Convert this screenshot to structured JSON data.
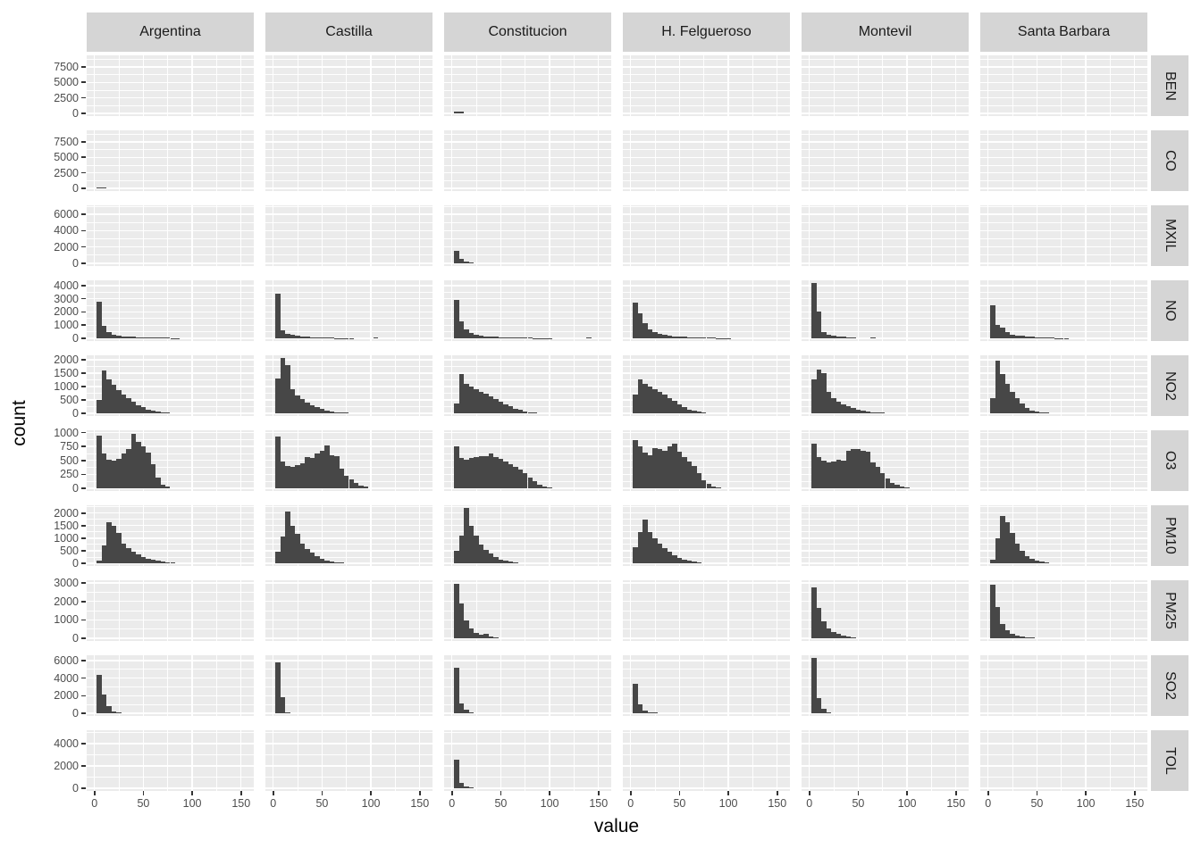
{
  "colors": {
    "bar": "#474747",
    "panel_bg": "#EBEBEB",
    "strip_bg": "#D5D5D5",
    "grid": "#FFFFFF",
    "tick": "#333333",
    "tick_text": "#4D4D4D",
    "strip_text": "#1A1A1A"
  },
  "chart_data": {
    "type": "bar",
    "subtype": "faceted-histogram-grid",
    "title": "",
    "xlabel": "value",
    "ylabel": "count",
    "legend": "none",
    "grid": "on",
    "x_ticks": [
      0,
      50,
      100,
      150
    ],
    "x_minor_ticks": [
      25,
      75,
      125
    ],
    "x_domain": [
      -8,
      163
    ],
    "bin_start": 2.5,
    "bin_width": 5,
    "facet_columns": [
      "Argentina",
      "Castilla",
      "Constitucion",
      "H. Felgueroso",
      "Montevil",
      "Santa Barbara"
    ],
    "facet_rows": [
      {
        "label": "BEN",
        "y_ticks": [
          0,
          2500,
          5000,
          7500
        ],
        "y_top": 9350,
        "counts": [
          [],
          [],
          [
            260,
            240
          ],
          [],
          [],
          []
        ]
      },
      {
        "label": "CO",
        "y_ticks": [
          0,
          2500,
          5000,
          7500
        ],
        "y_top": 9350,
        "counts": [
          [
            200,
            150
          ],
          [],
          [],
          [],
          [],
          []
        ]
      },
      {
        "label": "MXIL",
        "y_ticks": [
          0,
          2000,
          4000,
          6000
        ],
        "y_top": 7100,
        "counts": [
          [],
          [],
          [
            1500,
            500,
            200,
            150
          ],
          [],
          [],
          []
        ]
      },
      {
        "label": "NO",
        "y_ticks": [
          0,
          1000,
          2000,
          3000,
          4000
        ],
        "y_top": 4400,
        "counts": [
          [
            2750,
            950,
            450,
            280,
            200,
            160,
            130,
            110,
            90,
            75,
            60,
            50,
            45,
            40,
            35,
            30,
            25
          ],
          [
            3400,
            600,
            350,
            240,
            180,
            140,
            110,
            90,
            70,
            55,
            45,
            35,
            30,
            25,
            20,
            18,
            0,
            0,
            0,
            0,
            45
          ],
          [
            2900,
            1300,
            650,
            400,
            280,
            210,
            160,
            130,
            105,
            85,
            70,
            60,
            50,
            45,
            40,
            35,
            30,
            25,
            22,
            20,
            0,
            0,
            0,
            0,
            0,
            0,
            0,
            40
          ],
          [
            2700,
            1900,
            1150,
            700,
            450,
            330,
            260,
            210,
            170,
            140,
            110,
            90,
            75,
            60,
            50,
            40,
            35,
            30,
            25,
            20
          ],
          [
            4190,
            2050,
            500,
            280,
            190,
            140,
            110,
            80,
            60,
            0,
            0,
            0,
            70
          ],
          [
            2500,
            1000,
            800,
            450,
            300,
            230,
            180,
            140,
            110,
            85,
            65,
            50,
            40,
            32,
            26,
            22
          ]
        ]
      },
      {
        "label": "NO2",
        "y_ticks": [
          0,
          500,
          1000,
          1500,
          2000
        ],
        "y_top": 2160,
        "counts": [
          [
            500,
            1600,
            1250,
            1050,
            850,
            700,
            550,
            420,
            300,
            220,
            150,
            100,
            65,
            40,
            25
          ],
          [
            1300,
            2050,
            1800,
            900,
            680,
            520,
            400,
            300,
            220,
            160,
            110,
            75,
            50,
            35,
            22
          ],
          [
            380,
            1450,
            1100,
            1000,
            900,
            810,
            720,
            620,
            520,
            420,
            330,
            250,
            180,
            120,
            75,
            45,
            25
          ],
          [
            700,
            1250,
            1100,
            1000,
            900,
            800,
            700,
            580,
            450,
            330,
            230,
            150,
            90,
            55,
            30
          ],
          [
            1250,
            1620,
            1500,
            800,
            580,
            430,
            330,
            250,
            190,
            140,
            100,
            70,
            48,
            32,
            20
          ],
          [
            550,
            1950,
            1450,
            1100,
            800,
            550,
            350,
            200,
            110,
            60,
            30,
            20
          ]
        ]
      },
      {
        "label": "O3",
        "y_ticks": [
          0,
          250,
          500,
          750,
          1000
        ],
        "y_top": 1040,
        "counts": [
          [
            950,
            620,
            510,
            490,
            530,
            620,
            700,
            975,
            830,
            760,
            640,
            430,
            190,
            60,
            25
          ],
          [
            930,
            480,
            400,
            390,
            410,
            450,
            560,
            540,
            620,
            680,
            770,
            590,
            580,
            360,
            230,
            160,
            90,
            50,
            25
          ],
          [
            760,
            550,
            510,
            540,
            560,
            580,
            575,
            620,
            560,
            530,
            480,
            430,
            380,
            330,
            280,
            200,
            130,
            70,
            35,
            15
          ],
          [
            870,
            760,
            640,
            600,
            720,
            700,
            680,
            760,
            800,
            650,
            560,
            480,
            400,
            280,
            150,
            80,
            40,
            20
          ],
          [
            800,
            560,
            500,
            460,
            480,
            520,
            500,
            680,
            700,
            700,
            680,
            650,
            460,
            380,
            280,
            180,
            100,
            60,
            30,
            15
          ],
          []
        ]
      },
      {
        "label": "PM10",
        "y_ticks": [
          0,
          500,
          1000,
          1500,
          2000
        ],
        "y_top": 2310,
        "counts": [
          [
            100,
            700,
            1650,
            1500,
            1200,
            800,
            600,
            480,
            350,
            250,
            180,
            130,
            90,
            60,
            40,
            25
          ],
          [
            450,
            1050,
            2050,
            1500,
            1180,
            800,
            580,
            430,
            300,
            190,
            120,
            80,
            50,
            30
          ],
          [
            500,
            1100,
            2200,
            1500,
            1100,
            750,
            520,
            380,
            250,
            160,
            100,
            60,
            35
          ],
          [
            650,
            1250,
            1750,
            1250,
            1000,
            800,
            600,
            450,
            310,
            210,
            140,
            90,
            55,
            35
          ],
          [],
          [
            150,
            1000,
            1900,
            1650,
            1200,
            800,
            500,
            300,
            180,
            100,
            55,
            30
          ]
        ]
      },
      {
        "label": "PM25",
        "y_ticks": [
          0,
          1000,
          2000,
          3000
        ],
        "y_top": 3150,
        "counts": [
          [],
          [],
          [
            2950,
            1900,
            950,
            550,
            300,
            180,
            250,
            120,
            60
          ],
          [],
          [
            2750,
            1650,
            900,
            550,
            350,
            220,
            140,
            90,
            50
          ],
          [
            2900,
            1700,
            800,
            450,
            250,
            150,
            90,
            55,
            30
          ]
        ]
      },
      {
        "label": "SO2",
        "y_ticks": [
          0,
          2000,
          4000,
          6000
        ],
        "y_top": 6600,
        "counts": [
          [
            4400,
            2100,
            800,
            250,
            100
          ],
          [
            5800,
            1800,
            150
          ],
          [
            5200,
            1150,
            400,
            150
          ],
          [
            3400,
            1050,
            350,
            150,
            80
          ],
          [
            6300,
            1700,
            500,
            150
          ],
          []
        ]
      },
      {
        "label": "TOL",
        "y_ticks": [
          0,
          2000,
          4000
        ],
        "y_top": 5200,
        "counts": [
          [],
          [],
          [
            2600,
            500,
            150,
            80
          ],
          [],
          [],
          []
        ]
      }
    ]
  }
}
